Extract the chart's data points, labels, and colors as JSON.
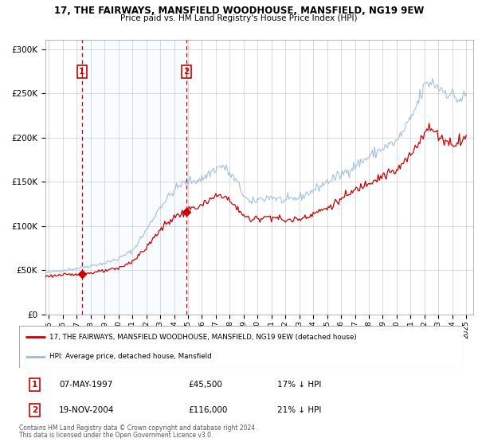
{
  "title_line1": "17, THE FAIRWAYS, MANSFIELD WOODHOUSE, MANSFIELD, NG19 9EW",
  "title_line2": "Price paid vs. HM Land Registry's House Price Index (HPI)",
  "background_color": "#ffffff",
  "plot_bg_color": "#ffffff",
  "grid_color": "#cccccc",
  "red_line_color": "#cc0000",
  "blue_line_color": "#99bbdd",
  "shade_color": "#ddeeff",
  "marker1_date_year": 1997.37,
  "marker1_value": 45500,
  "marker2_date_year": 2004.89,
  "marker2_value": 116000,
  "legend_line1": "17, THE FAIRWAYS, MANSFIELD WOODHOUSE, MANSFIELD, NG19 9EW (detached house)",
  "legend_line2": "HPI: Average price, detached house, Mansfield",
  "annotation1_date": "07-MAY-1997",
  "annotation1_price": "£45,500",
  "annotation1_hpi": "17% ↓ HPI",
  "annotation2_date": "19-NOV-2004",
  "annotation2_price": "£116,000",
  "annotation2_hpi": "21% ↓ HPI",
  "footer_line1": "Contains HM Land Registry data © Crown copyright and database right 2024.",
  "footer_line2": "This data is licensed under the Open Government Licence v3.0.",
  "ylim_max": 310000,
  "xlim_min": 1994.75,
  "xlim_max": 2025.5
}
